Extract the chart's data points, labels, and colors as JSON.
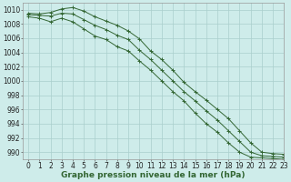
{
  "xlabel": "Graphe pression niveau de la mer (hPa)",
  "xlim": [
    -0.5,
    23
  ],
  "ylim": [
    989,
    1011
  ],
  "yticks": [
    990,
    992,
    994,
    996,
    998,
    1000,
    1002,
    1004,
    1006,
    1008,
    1010
  ],
  "xticks": [
    0,
    1,
    2,
    3,
    4,
    5,
    6,
    7,
    8,
    9,
    10,
    11,
    12,
    13,
    14,
    15,
    16,
    17,
    18,
    19,
    20,
    21,
    22,
    23
  ],
  "background_color": "#ceecea",
  "grid_color": "#aacfcc",
  "line_color": "#336633",
  "hours": [
    0,
    1,
    2,
    3,
    4,
    5,
    6,
    7,
    8,
    9,
    10,
    11,
    12,
    13,
    14,
    15,
    16,
    17,
    18,
    19,
    20,
    21,
    22,
    23
  ],
  "line_top": [
    1009.5,
    1009.4,
    1009.6,
    1010.1,
    1010.3,
    1009.8,
    1009.0,
    1008.4,
    1007.8,
    1007.0,
    1005.9,
    1004.2,
    1003.0,
    1001.5,
    999.8,
    998.5,
    997.3,
    996.0,
    994.7,
    993.0,
    991.3,
    990.0,
    989.8,
    989.7
  ],
  "line_mid": [
    1009.3,
    1009.2,
    1009.1,
    1009.5,
    1009.4,
    1008.6,
    1007.8,
    1007.2,
    1006.4,
    1005.8,
    1004.3,
    1003.0,
    1001.5,
    1000.0,
    998.5,
    997.2,
    995.8,
    994.5,
    993.0,
    991.5,
    990.0,
    989.5,
    989.4,
    989.3
  ],
  "line_bot": [
    1009.0,
    1008.8,
    1008.3,
    1008.8,
    1008.3,
    1007.3,
    1006.3,
    1005.8,
    1004.8,
    1004.2,
    1002.8,
    1001.5,
    1000.0,
    998.5,
    997.2,
    995.5,
    994.0,
    992.8,
    991.3,
    990.0,
    989.3,
    989.2,
    989.1,
    989.0
  ],
  "tick_fontsize": 5.5,
  "label_fontsize": 6.5
}
